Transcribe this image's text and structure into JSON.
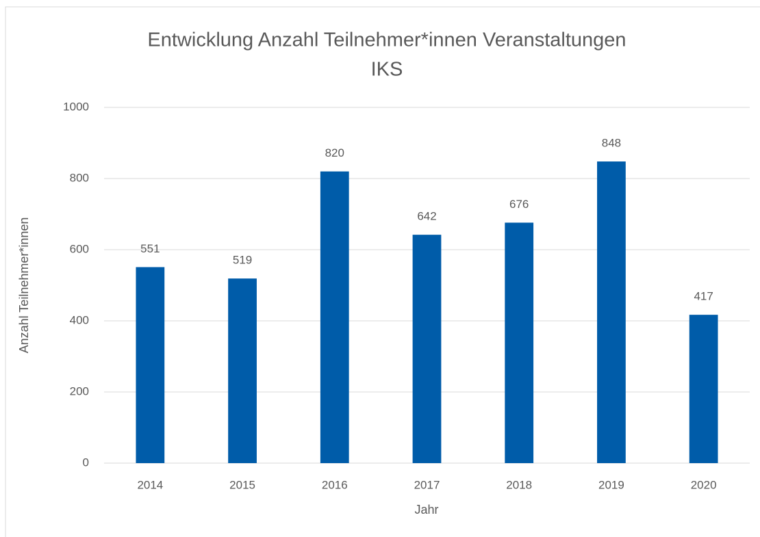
{
  "chart_data": {
    "type": "bar",
    "title": [
      "Entwicklung Anzahl Teilnehmer*innen  Veranstaltungen",
      "IKS"
    ],
    "x_label": "Jahr",
    "y_label": "Anzahl Teilnehmer*innen",
    "categories": [
      "2014",
      "2015",
      "2016",
      "2017",
      "2018",
      "2019",
      "2020"
    ],
    "values": [
      551,
      519,
      820,
      642,
      676,
      848,
      417
    ],
    "color": "#005ca9",
    "ylim": [
      0,
      1000
    ],
    "yticks": [
      0,
      200,
      400,
      600,
      800,
      1000
    ],
    "grid": true,
    "data_labels": true
  }
}
